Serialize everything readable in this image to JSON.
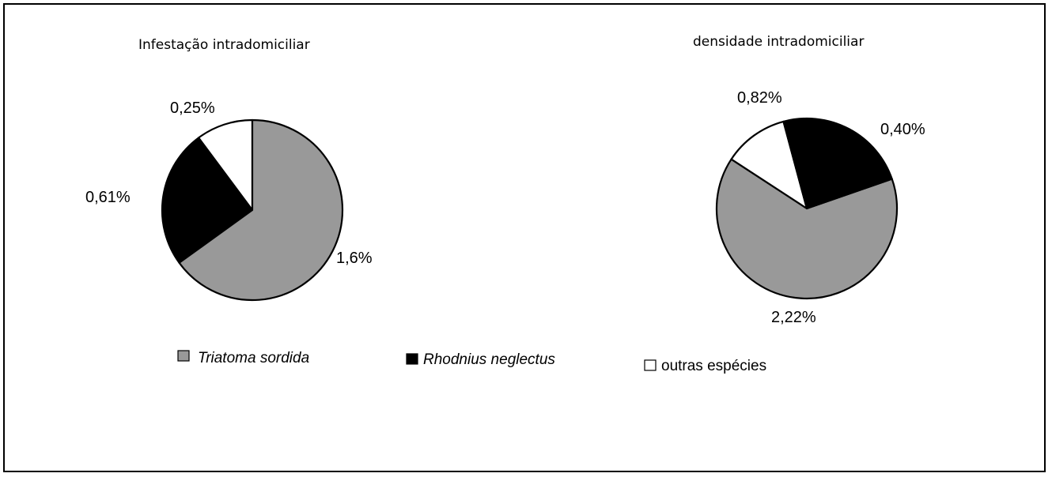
{
  "chart_data": [
    {
      "type": "pie",
      "title": "Infestação intradomiciliar",
      "slices": [
        {
          "name": "Triatoma sordida",
          "label": "1,6%",
          "value": 1.6,
          "color": "#999999"
        },
        {
          "name": "Rhodnius neglectus",
          "label": "0,61%",
          "value": 0.61,
          "color": "#000000"
        },
        {
          "name": "outras espécies",
          "label": "0,25%",
          "value": 0.25,
          "color": "#ffffff"
        }
      ]
    },
    {
      "type": "pie",
      "title": "densidade intradomiciliar",
      "slices": [
        {
          "name": "Triatoma sordida",
          "label": "2,22%",
          "value": 2.22,
          "color": "#999999"
        },
        {
          "name": "Rhodnius neglectus",
          "label": "0,82%",
          "value": 0.82,
          "color": "#000000"
        },
        {
          "name": "outras espécies",
          "label": "0,40%",
          "value": 0.4,
          "color": "#ffffff"
        }
      ]
    }
  ],
  "legend": {
    "placement": "bottom",
    "items": [
      {
        "label": "Triatoma sordida",
        "color": "#999999",
        "italic": true
      },
      {
        "label": "Rhodnius neglectus",
        "color": "#000000",
        "italic": true
      },
      {
        "label": "outras espécies",
        "color": "#ffffff",
        "italic": false
      }
    ]
  }
}
